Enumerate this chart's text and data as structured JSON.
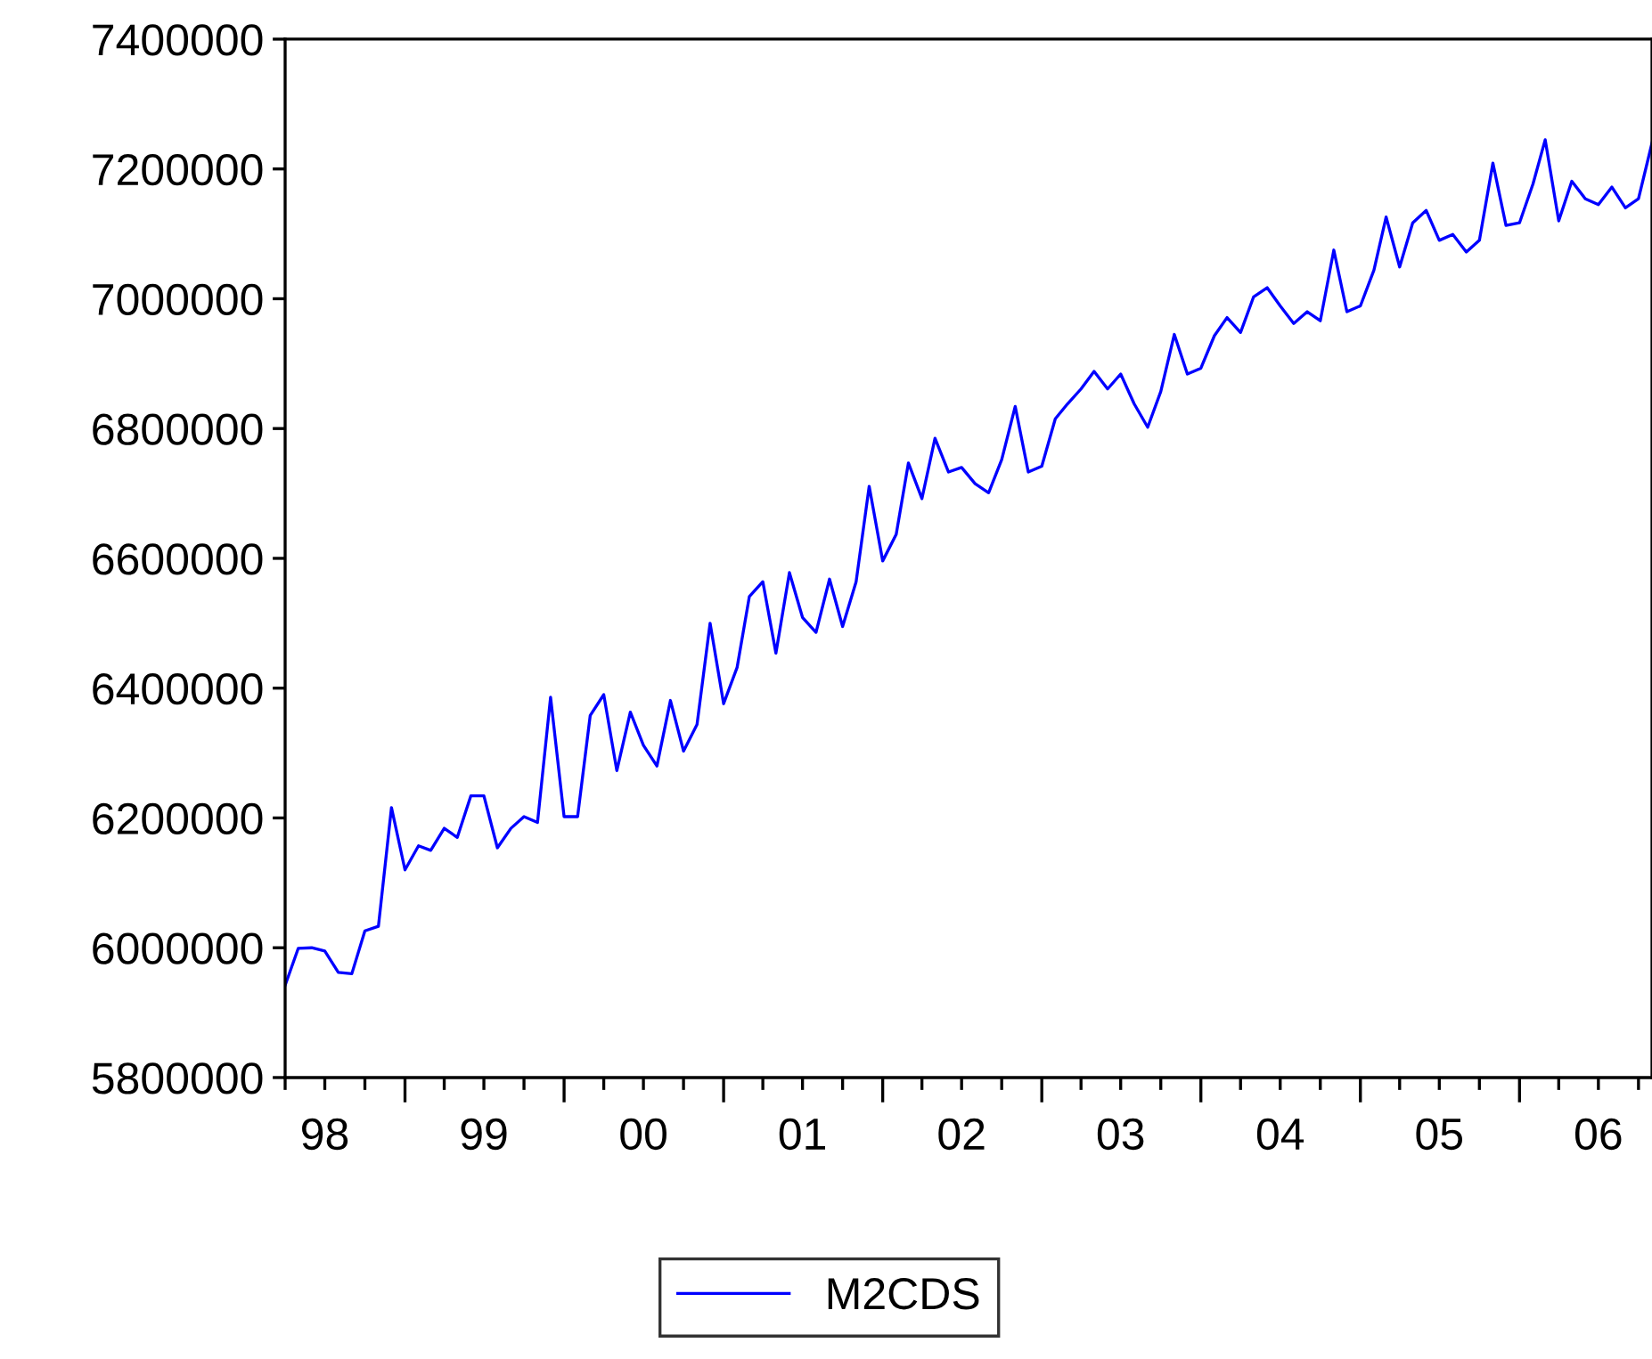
{
  "chart_data": {
    "type": "line",
    "x": [
      "1998-04",
      "1998-05",
      "1998-06",
      "1998-07",
      "1998-08",
      "1998-09",
      "1998-10",
      "1998-11",
      "1998-12",
      "1999-01",
      "1999-02",
      "1999-03",
      "1999-04",
      "1999-05",
      "1999-06",
      "1999-07",
      "1999-08",
      "1999-09",
      "1999-10",
      "1999-11",
      "1999-12",
      "2000-01",
      "2000-02",
      "2000-03",
      "2000-04",
      "2000-05",
      "2000-06",
      "2000-07",
      "2000-08",
      "2000-09",
      "2000-10",
      "2000-11",
      "2000-12",
      "2001-01",
      "2001-02",
      "2001-03",
      "2001-04",
      "2001-05",
      "2001-06",
      "2001-07",
      "2001-08",
      "2001-09",
      "2001-10",
      "2001-11",
      "2001-12",
      "2002-01",
      "2002-02",
      "2002-03",
      "2002-04",
      "2002-05",
      "2002-06",
      "2002-07",
      "2002-08",
      "2002-09",
      "2002-10",
      "2002-11",
      "2002-12",
      "2003-01",
      "2003-02",
      "2003-03",
      "2003-04",
      "2003-05",
      "2003-06",
      "2003-07",
      "2003-08",
      "2003-09",
      "2003-10",
      "2003-11",
      "2003-12",
      "2004-01",
      "2004-02",
      "2004-03",
      "2004-04",
      "2004-05",
      "2004-06",
      "2004-07",
      "2004-08",
      "2004-09",
      "2004-10",
      "2004-11",
      "2004-12",
      "2005-01",
      "2005-02",
      "2005-03",
      "2005-04",
      "2005-05",
      "2005-06",
      "2005-07",
      "2005-08",
      "2005-09",
      "2005-10",
      "2005-11",
      "2005-12",
      "2006-01",
      "2006-02",
      "2006-03",
      "2006-04",
      "2006-05",
      "2006-06",
      "2006-07",
      "2006-08",
      "2006-09",
      "2006-10",
      "2006-11"
    ],
    "series": [
      {
        "name": "M2CDS",
        "color": "#0000ff",
        "values": [
          5942000,
          5999000,
          6000000,
          5995000,
          5962000,
          5960000,
          6026000,
          6033000,
          6216000,
          6120000,
          6157000,
          6150000,
          6184000,
          6170000,
          6234000,
          6234000,
          6154000,
          6184000,
          6202000,
          6193000,
          6386000,
          6202000,
          6202000,
          6358000,
          6390000,
          6273000,
          6363000,
          6312000,
          6280000,
          6381000,
          6303000,
          6344000,
          6500000,
          6376000,
          6432000,
          6541000,
          6564000,
          6454000,
          6578000,
          6509000,
          6486000,
          6568000,
          6495000,
          6564000,
          6711000,
          6596000,
          6637000,
          6747000,
          6692000,
          6785000,
          6733000,
          6740000,
          6715000,
          6701000,
          6752000,
          6834000,
          6733000,
          6742000,
          6815000,
          6838000,
          6861000,
          6888000,
          6861000,
          6884000,
          6838000,
          6802000,
          6857000,
          6945000,
          6884000,
          6893000,
          6943000,
          6971000,
          6948000,
          7003000,
          7017000,
          6989000,
          6962000,
          6980000,
          6966000,
          7075000,
          6980000,
          6989000,
          7044000,
          7126000,
          7049000,
          7117000,
          7136000,
          7090000,
          7099000,
          7072000,
          7090000,
          7209000,
          7113000,
          7117000,
          7177000,
          7245000,
          7120000,
          7181000,
          7154000,
          7145000,
          7172000,
          7140000,
          7154000,
          7240000
        ]
      }
    ],
    "xlim": [
      "1998-04",
      "2006-11"
    ],
    "xticks": [
      {
        "value": "1998-07",
        "label": "98"
      },
      {
        "value": "1999-01",
        "label": null
      },
      {
        "value": "1999-07",
        "label": "99"
      },
      {
        "value": "2000-01",
        "label": null
      },
      {
        "value": "2000-07",
        "label": "00"
      },
      {
        "value": "2001-01",
        "label": null
      },
      {
        "value": "2001-07",
        "label": "01"
      },
      {
        "value": "2002-01",
        "label": null
      },
      {
        "value": "2002-07",
        "label": "02"
      },
      {
        "value": "2003-01",
        "label": null
      },
      {
        "value": "2003-07",
        "label": "03"
      },
      {
        "value": "2004-01",
        "label": null
      },
      {
        "value": "2004-07",
        "label": "04"
      },
      {
        "value": "2005-01",
        "label": null
      },
      {
        "value": "2005-07",
        "label": "05"
      },
      {
        "value": "2006-01",
        "label": null
      },
      {
        "value": "2006-07",
        "label": "06"
      }
    ],
    "ylim": [
      5800000,
      7400000
    ],
    "yticks": [
      5800000,
      6000000,
      6200000,
      6400000,
      6600000,
      6800000,
      7000000,
      7200000,
      7400000
    ],
    "grid": false,
    "legend": "bottom",
    "marker": "none",
    "line_style": "solid"
  }
}
